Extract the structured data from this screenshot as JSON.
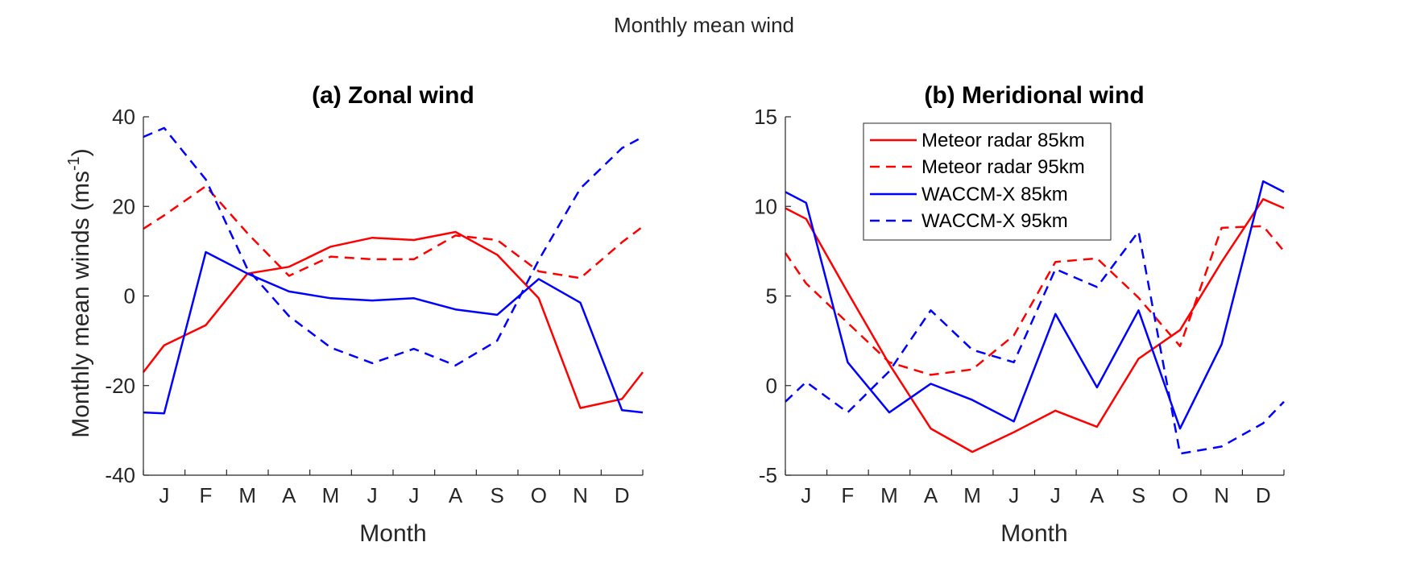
{
  "suptitle": "Monthly mean wind",
  "colors": {
    "red": "#ff0000",
    "blue": "#0000ff",
    "axis": "#262626"
  },
  "chart_data": [
    {
      "type": "line",
      "title": "(a) Zonal wind",
      "xlabel": "Month",
      "ylabel": "Monthly mean winds (ms",
      "ylabel_sup": "-1",
      "ylabel_end": ")",
      "categories": [
        "J",
        "F",
        "M",
        "A",
        "M",
        "J",
        "J",
        "A",
        "S",
        "O",
        "N",
        "D"
      ],
      "x": [
        0,
        0.5,
        1.5,
        2.5,
        3.5,
        4.5,
        5.5,
        6.5,
        7.5,
        8.5,
        9.5,
        10.5,
        11.5,
        12
      ],
      "ylim": [
        -40,
        40
      ],
      "yticks": [
        -40,
        -20,
        0,
        20,
        40
      ],
      "xlim": [
        0,
        12
      ],
      "grid": false,
      "series": [
        {
          "name": "Meteor radar 85km",
          "color": "#ff0000",
          "dash": false,
          "values": [
            -17,
            -11,
            -6.5,
            5,
            6.5,
            11,
            13,
            12.5,
            14.3,
            9.2,
            -0.5,
            -25,
            -23,
            -17
          ]
        },
        {
          "name": "Meteor radar 95km",
          "color": "#ff0000",
          "dash": true,
          "values": [
            15,
            18,
            24.5,
            14,
            4.5,
            8.8,
            8.2,
            8.2,
            13.5,
            12.5,
            5.5,
            4,
            12,
            15.5
          ]
        },
        {
          "name": "WACCM-X 85km",
          "color": "#0000ff",
          "dash": false,
          "values": [
            -26,
            -26.2,
            9.8,
            5,
            1,
            -0.5,
            -1,
            -0.5,
            -3,
            -4.2,
            3.8,
            -1.5,
            -25.5,
            -26
          ]
        },
        {
          "name": "WACCM-X 95km",
          "color": "#0000ff",
          "dash": true,
          "values": [
            35.5,
            37.5,
            26,
            6,
            -4.5,
            -11.5,
            -15,
            -11.8,
            -15.5,
            -10,
            8,
            24,
            33,
            35.5
          ]
        }
      ]
    },
    {
      "type": "line",
      "title": "(b) Meridional wind",
      "xlabel": "Month",
      "categories": [
        "J",
        "F",
        "M",
        "A",
        "M",
        "J",
        "J",
        "A",
        "S",
        "O",
        "N",
        "D"
      ],
      "x": [
        0,
        0.5,
        1.5,
        2.5,
        3.5,
        4.5,
        5.5,
        6.5,
        7.5,
        8.5,
        9.5,
        10.5,
        11.5,
        12
      ],
      "ylim": [
        -5,
        15
      ],
      "yticks": [
        -5,
        0,
        5,
        10,
        15
      ],
      "xlim": [
        0,
        12
      ],
      "grid": false,
      "legend": "top-center",
      "series": [
        {
          "name": "Meteor radar 85km",
          "color": "#ff0000",
          "dash": false,
          "values": [
            9.9,
            9.3,
            5.2,
            1.2,
            -2.4,
            -3.7,
            -2.6,
            -1.4,
            -2.3,
            1.5,
            3.1,
            6.9,
            10.4,
            9.9
          ]
        },
        {
          "name": "Meteor radar 95km",
          "color": "#ff0000",
          "dash": true,
          "values": [
            7.4,
            5.7,
            3.5,
            1.3,
            0.6,
            0.9,
            2.8,
            6.9,
            7.1,
            4.9,
            2.2,
            8.8,
            8.9,
            7.5
          ]
        },
        {
          "name": "WACCM-X 85km",
          "color": "#0000ff",
          "dash": false,
          "values": [
            10.8,
            10.2,
            1.3,
            -1.5,
            0.1,
            -0.8,
            -2,
            4,
            -0.1,
            4.2,
            -2.4,
            2.3,
            11.4,
            10.8
          ]
        },
        {
          "name": "WACCM-X 95km",
          "color": "#0000ff",
          "dash": true,
          "values": [
            -0.9,
            0.2,
            -1.5,
            0.8,
            4.2,
            2,
            1.3,
            6.5,
            5.5,
            8.6,
            -3.8,
            -3.4,
            -2.1,
            -0.9
          ]
        }
      ]
    }
  ]
}
